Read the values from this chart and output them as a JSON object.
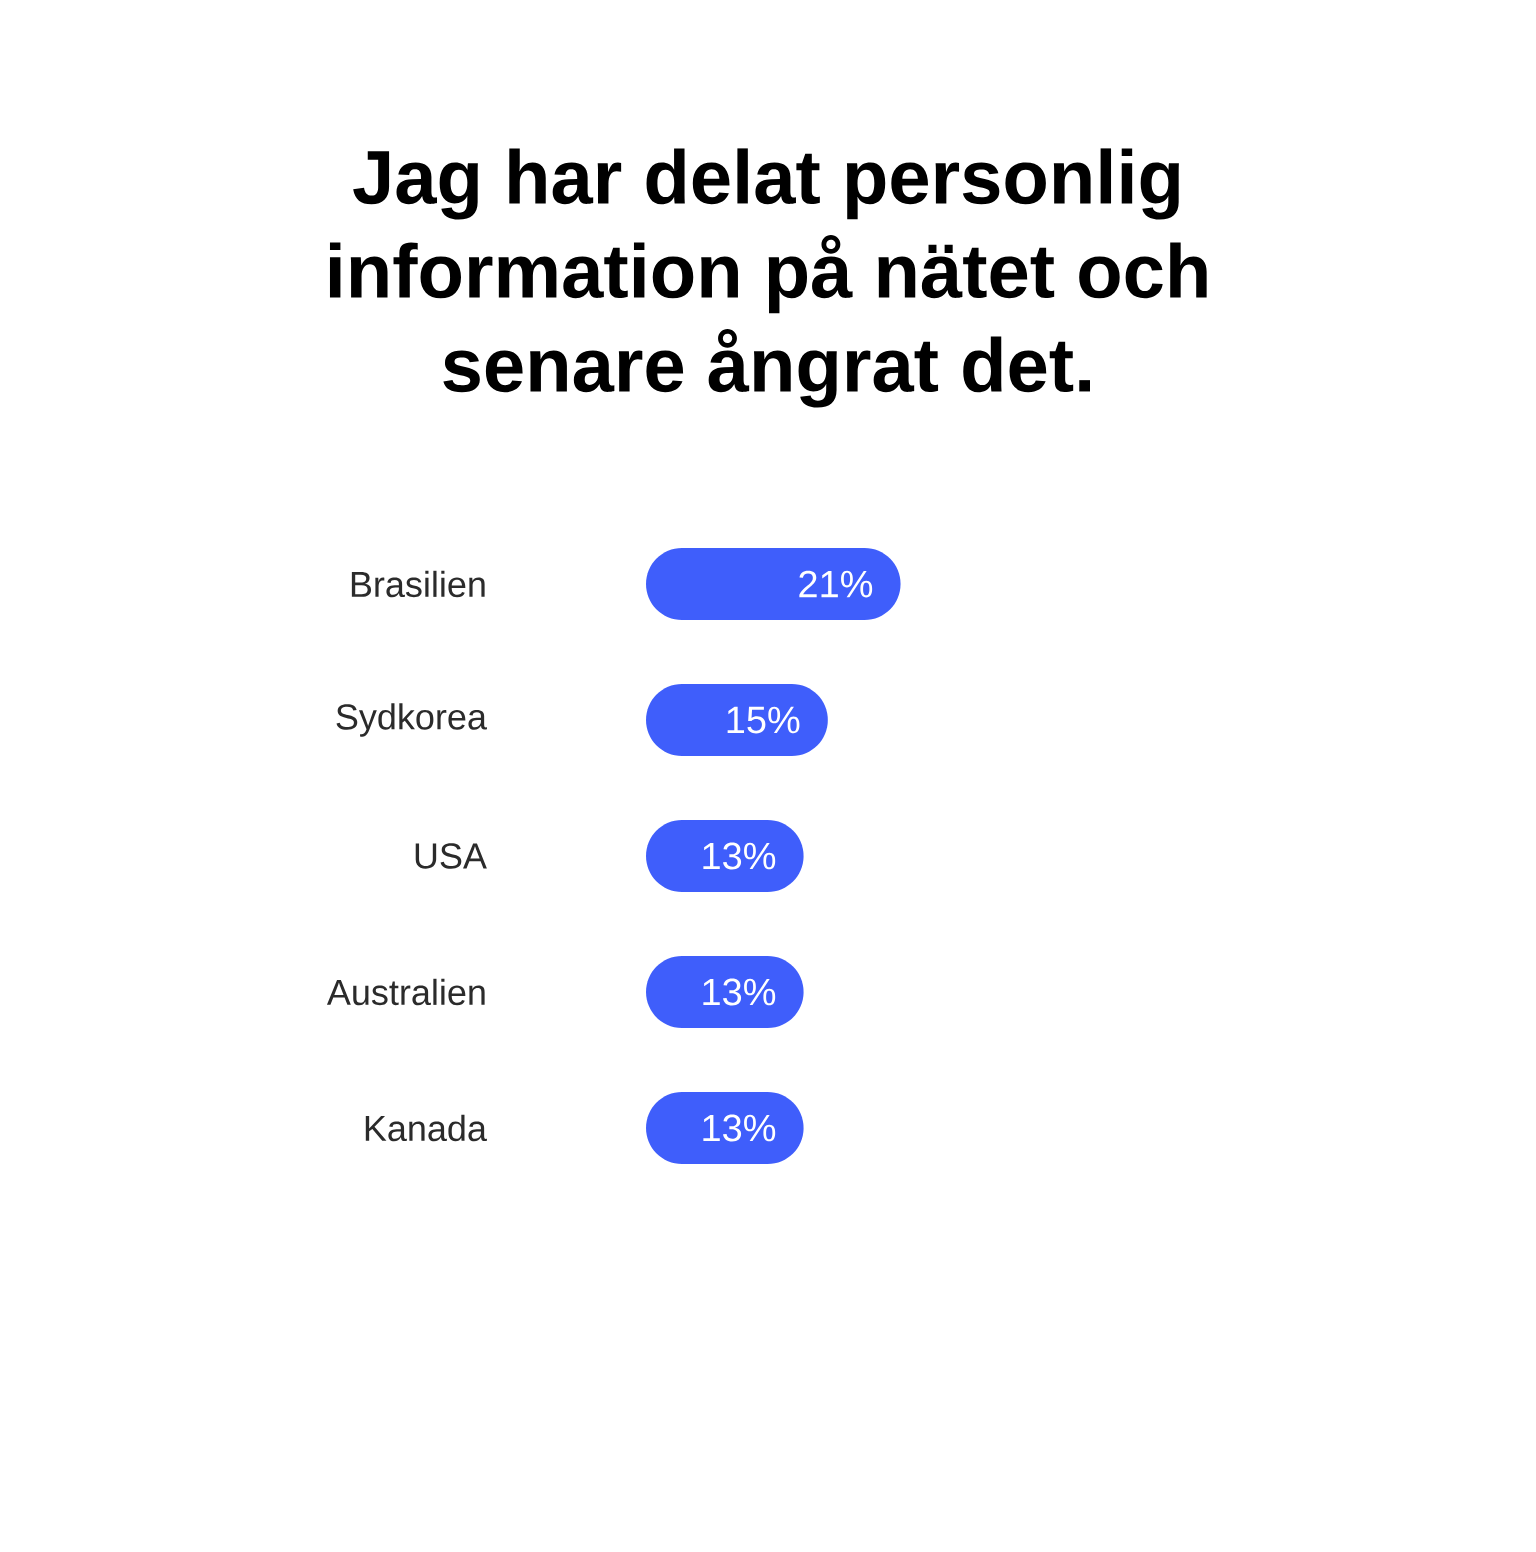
{
  "chart_data": {
    "type": "bar",
    "orientation": "horizontal",
    "title": "Jag har delat personlig information på nätet och senare ångrat det.",
    "categories": [
      "Brasilien",
      "Sydkorea",
      "USA",
      "Australien",
      "Kanada"
    ],
    "values": [
      21,
      15,
      13,
      13,
      13
    ],
    "value_labels": [
      "21%",
      "15%",
      "13%",
      "13%",
      "13%"
    ],
    "color": "#3f5efb",
    "tick_labels": "y"
  }
}
